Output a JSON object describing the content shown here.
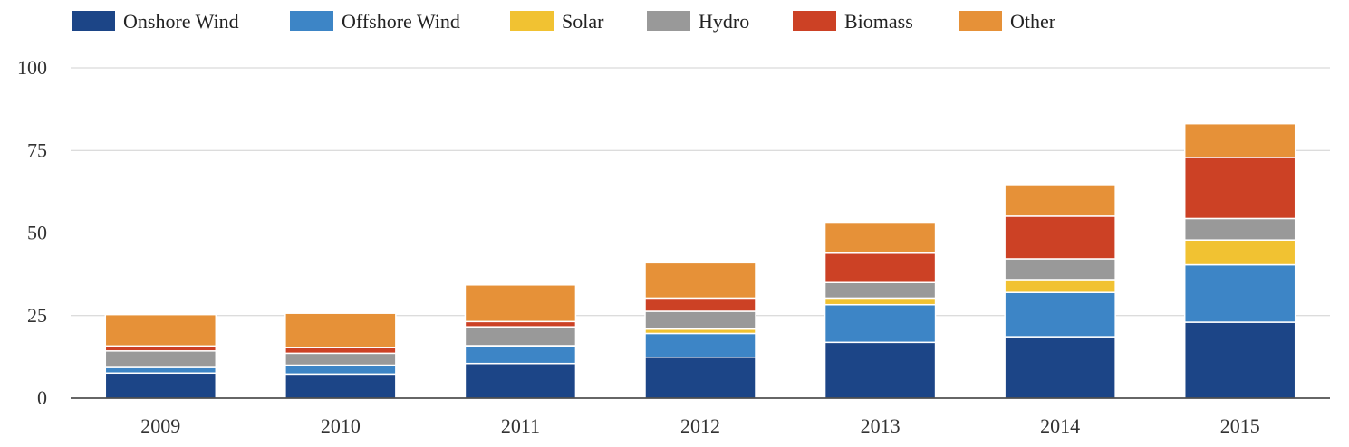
{
  "chart_data": {
    "type": "bar",
    "stacked": true,
    "categories": [
      "2009",
      "2010",
      "2011",
      "2012",
      "2013",
      "2014",
      "2015"
    ],
    "series": [
      {
        "name": "Onshore Wind",
        "color": "#1c4587",
        "values": [
          7.6,
          7.3,
          10.5,
          12.4,
          16.9,
          18.6,
          23.0
        ]
      },
      {
        "name": "Offshore Wind",
        "color": "#3d85c6",
        "values": [
          1.7,
          2.7,
          5.1,
          7.2,
          11.4,
          13.4,
          17.4
        ]
      },
      {
        "name": "Solar",
        "color": "#f1c232",
        "values": [
          0.0,
          0.0,
          0.3,
          1.3,
          2.0,
          3.9,
          7.5
        ]
      },
      {
        "name": "Hydro",
        "color": "#999999",
        "values": [
          5.0,
          3.6,
          5.7,
          5.4,
          4.7,
          6.3,
          6.5
        ]
      },
      {
        "name": "Biomass",
        "color": "#cc4125",
        "values": [
          1.5,
          1.7,
          1.6,
          4.0,
          8.9,
          12.9,
          18.5
        ]
      },
      {
        "name": "Other",
        "color": "#e69138",
        "values": [
          9.5,
          10.4,
          11.1,
          10.7,
          9.1,
          9.3,
          10.2
        ]
      }
    ],
    "xlabel": "",
    "ylabel": "",
    "ylim": [
      0,
      100
    ],
    "yticks": [
      0,
      25,
      50,
      75,
      100
    ],
    "grid": true,
    "legend": "top"
  }
}
